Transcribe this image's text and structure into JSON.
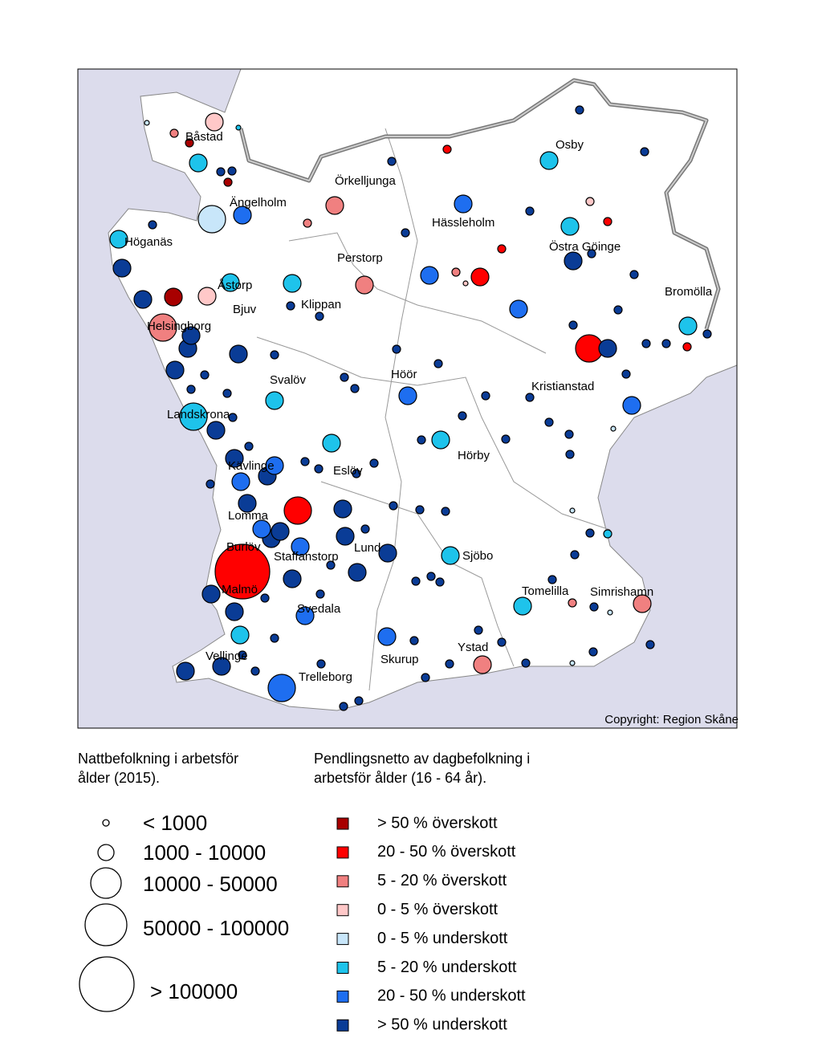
{
  "map": {
    "places": [
      "Båstad",
      "Örkelljunga",
      "Osby",
      "Ängelholm",
      "Hässleholm",
      "Höganäs",
      "Östra Göinge",
      "Perstorp",
      "Åstorp",
      "Klippan",
      "Bromölla",
      "Bjuv",
      "Helsingborg",
      "Höör",
      "Svalöv",
      "Kristianstad",
      "Landskrona",
      "Hörby",
      "Kävlinge",
      "Eslöv",
      "Lomma",
      "Lund",
      "Burlöv",
      "Staffanstorp",
      "Sjöbo",
      "Malmö",
      "Tomelilla",
      "Simrishamn",
      "Svedala",
      "Ystad",
      "Vellinge",
      "Skurup",
      "Trelleborg"
    ],
    "copyright": "Copyright: Region Skåne",
    "legend": {
      "size_title": [
        "Nattbefolkning i arbetsför",
        "ålder (2015)."
      ],
      "size_classes": [
        "< 1000",
        "1000 - 10000",
        "10000 - 50000",
        "50000 - 100000",
        "> 100000"
      ],
      "color_title": [
        "Pendlingsnetto av dagbefolkning i",
        "arbetsför ålder (16 - 64 år)."
      ],
      "color_classes": [
        {
          "label": "> 50 % överskott",
          "color": "#a80000"
        },
        {
          "label": "20 - 50 % överskott",
          "color": "#ff0000"
        },
        {
          "label": "5 - 20 % överskott",
          "color": "#f08080"
        },
        {
          "label": "0 - 5 % överskott",
          "color": "#ffc8c8"
        },
        {
          "label": "0 - 5 % underskott",
          "color": "#c8e6fa"
        },
        {
          "label": "5 - 20 % underskott",
          "color": "#1ec3eb"
        },
        {
          "label": "20 - 50 % underskott",
          "color": "#1e6ef0"
        },
        {
          "label": "> 50 % underskott",
          "color": "#0a3c96"
        }
      ]
    }
  }
}
